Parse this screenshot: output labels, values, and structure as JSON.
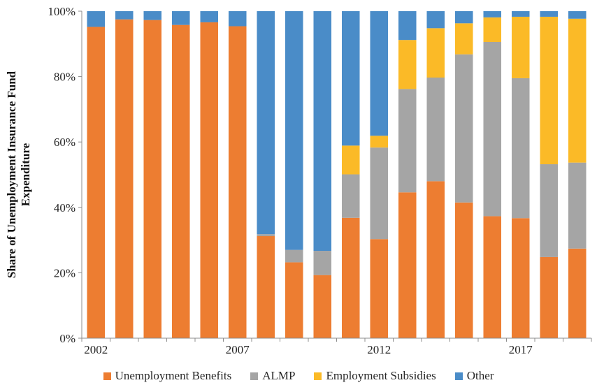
{
  "chart_data": {
    "type": "bar",
    "stacked": true,
    "title": "",
    "xlabel": "",
    "ylabel_lines": [
      "Share of Unemployment Insurance Fund",
      "Expenditure"
    ],
    "ylim": [
      0,
      100
    ],
    "y_ticks": [
      "0%",
      "20%",
      "40%",
      "60%",
      "80%",
      "100%"
    ],
    "y_tick_values": [
      0,
      20,
      40,
      60,
      80,
      100
    ],
    "x_tick_labels": [
      {
        "year": 2002,
        "label": "2002"
      },
      {
        "year": 2007,
        "label": "2007"
      },
      {
        "year": 2012,
        "label": "2012"
      },
      {
        "year": 2017,
        "label": "2017"
      }
    ],
    "categories": [
      2002,
      2003,
      2004,
      2005,
      2006,
      2007,
      2008,
      2009,
      2010,
      2011,
      2012,
      2013,
      2014,
      2015,
      2016,
      2017,
      2018,
      2019
    ],
    "series": [
      {
        "name": "Unemployment Benefits",
        "color": "#ED7D31",
        "values": [
          95.2,
          97.5,
          97.3,
          95.8,
          96.6,
          95.4,
          31.2,
          23.2,
          19.3,
          36.8,
          30.3,
          44.6,
          48.0,
          41.5,
          37.3,
          36.7,
          24.8,
          27.4
        ]
      },
      {
        "name": "ALMP",
        "color": "#A5A5A5",
        "values": [
          0,
          0,
          0,
          0,
          0,
          0,
          0.6,
          3.8,
          7.4,
          13.3,
          28.0,
          31.6,
          31.7,
          45.3,
          53.3,
          42.8,
          28.4,
          26.3
        ]
      },
      {
        "name": "Employment Subsidies",
        "color": "#FBBA27",
        "values": [
          0,
          0,
          0,
          0,
          0,
          0,
          0,
          0,
          0,
          8.8,
          3.6,
          15.0,
          15.1,
          9.5,
          7.5,
          18.8,
          45.1,
          44.0
        ]
      },
      {
        "name": "Other",
        "color": "#4A8CC8",
        "values": [
          4.8,
          2.5,
          2.7,
          4.2,
          3.4,
          4.6,
          68.2,
          73.0,
          73.3,
          41.1,
          38.1,
          8.8,
          5.2,
          3.7,
          1.9,
          1.7,
          1.7,
          2.3
        ]
      }
    ],
    "grid": false,
    "legend_position": "bottom"
  }
}
